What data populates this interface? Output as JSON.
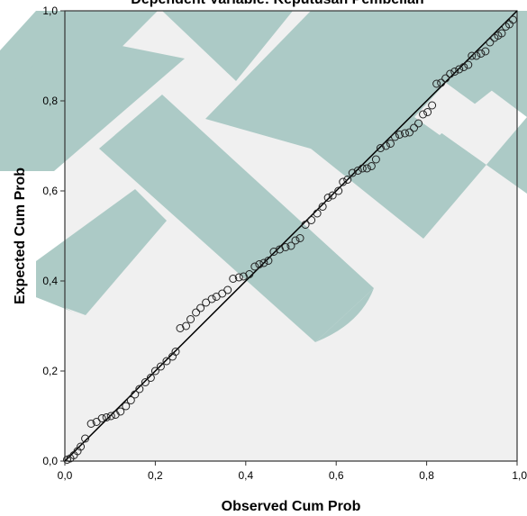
{
  "chart_data": {
    "type": "scatter",
    "title": "Dependent Variable: Keputusan Pembelian",
    "xlabel": "Observed Cum Prob",
    "ylabel": "Expected Cum Prob",
    "xlim": [
      0,
      1
    ],
    "ylim": [
      0,
      1
    ],
    "x_ticks": [
      "0,0",
      "0,2",
      "0,4",
      "0,6",
      "0,8",
      "1,0"
    ],
    "y_ticks": [
      "0,0",
      "0,2",
      "0,4",
      "0,6",
      "0,8",
      "1,0"
    ],
    "grid": false,
    "legend": "none",
    "reference_line": {
      "from": [
        0,
        0
      ],
      "to": [
        1,
        1
      ]
    },
    "colors": {
      "plot_background": "#f0f0f0",
      "watermark": "#a9c9c4",
      "marker": "#222222",
      "line": "#000000"
    },
    "points": [
      [
        0.005,
        0.003
      ],
      [
        0.012,
        0.006
      ],
      [
        0.02,
        0.013
      ],
      [
        0.028,
        0.022
      ],
      [
        0.035,
        0.032
      ],
      [
        0.045,
        0.05
      ],
      [
        0.058,
        0.083
      ],
      [
        0.07,
        0.087
      ],
      [
        0.082,
        0.095
      ],
      [
        0.092,
        0.097
      ],
      [
        0.102,
        0.1
      ],
      [
        0.112,
        0.103
      ],
      [
        0.123,
        0.11
      ],
      [
        0.135,
        0.122
      ],
      [
        0.146,
        0.135
      ],
      [
        0.155,
        0.148
      ],
      [
        0.165,
        0.16
      ],
      [
        0.178,
        0.175
      ],
      [
        0.19,
        0.185
      ],
      [
        0.2,
        0.2
      ],
      [
        0.212,
        0.21
      ],
      [
        0.225,
        0.222
      ],
      [
        0.238,
        0.232
      ],
      [
        0.245,
        0.243
      ],
      [
        0.255,
        0.295
      ],
      [
        0.268,
        0.3
      ],
      [
        0.278,
        0.315
      ],
      [
        0.29,
        0.33
      ],
      [
        0.3,
        0.34
      ],
      [
        0.312,
        0.352
      ],
      [
        0.325,
        0.36
      ],
      [
        0.335,
        0.365
      ],
      [
        0.348,
        0.372
      ],
      [
        0.36,
        0.38
      ],
      [
        0.372,
        0.405
      ],
      [
        0.385,
        0.408
      ],
      [
        0.395,
        0.41
      ],
      [
        0.408,
        0.415
      ],
      [
        0.42,
        0.432
      ],
      [
        0.43,
        0.437
      ],
      [
        0.44,
        0.44
      ],
      [
        0.45,
        0.445
      ],
      [
        0.462,
        0.465
      ],
      [
        0.475,
        0.47
      ],
      [
        0.488,
        0.475
      ],
      [
        0.5,
        0.478
      ],
      [
        0.51,
        0.49
      ],
      [
        0.52,
        0.495
      ],
      [
        0.532,
        0.525
      ],
      [
        0.545,
        0.535
      ],
      [
        0.558,
        0.55
      ],
      [
        0.57,
        0.565
      ],
      [
        0.582,
        0.585
      ],
      [
        0.592,
        0.59
      ],
      [
        0.605,
        0.6
      ],
      [
        0.615,
        0.62
      ],
      [
        0.625,
        0.625
      ],
      [
        0.636,
        0.64
      ],
      [
        0.648,
        0.645
      ],
      [
        0.658,
        0.65
      ],
      [
        0.668,
        0.65
      ],
      [
        0.678,
        0.655
      ],
      [
        0.688,
        0.67
      ],
      [
        0.698,
        0.695
      ],
      [
        0.71,
        0.7
      ],
      [
        0.72,
        0.705
      ],
      [
        0.73,
        0.72
      ],
      [
        0.74,
        0.725
      ],
      [
        0.752,
        0.728
      ],
      [
        0.762,
        0.73
      ],
      [
        0.772,
        0.74
      ],
      [
        0.782,
        0.75
      ],
      [
        0.792,
        0.77
      ],
      [
        0.802,
        0.775
      ],
      [
        0.812,
        0.79
      ],
      [
        0.822,
        0.838
      ],
      [
        0.832,
        0.84
      ],
      [
        0.842,
        0.85
      ],
      [
        0.852,
        0.86
      ],
      [
        0.862,
        0.865
      ],
      [
        0.872,
        0.87
      ],
      [
        0.882,
        0.875
      ],
      [
        0.892,
        0.88
      ],
      [
        0.9,
        0.9
      ],
      [
        0.91,
        0.9
      ],
      [
        0.92,
        0.905
      ],
      [
        0.93,
        0.91
      ],
      [
        0.94,
        0.93
      ],
      [
        0.95,
        0.94
      ],
      [
        0.958,
        0.945
      ],
      [
        0.966,
        0.95
      ],
      [
        0.975,
        0.965
      ],
      [
        0.983,
        0.97
      ],
      [
        0.991,
        0.98
      ]
    ]
  }
}
